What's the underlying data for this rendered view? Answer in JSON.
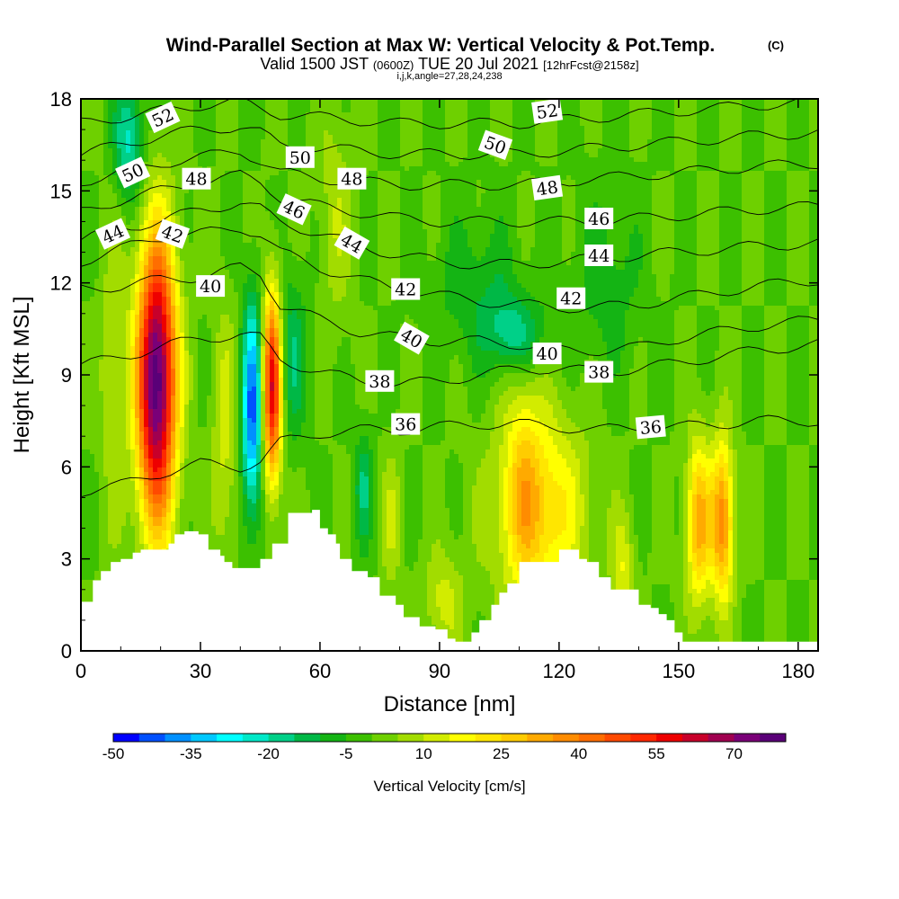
{
  "header": {
    "title": "Wind-Parallel Section at Max W: Vertical Velocity & Pot.Temp.",
    "copyright": "(C)",
    "valid_main_a": "Valid 1500 JST",
    "valid_small_a": "(0600Z)",
    "valid_main_b": "TUE 20 Jul 2021",
    "valid_small_b": "[12hrFcst@2158z]",
    "indices": "i,j,k,angle=27,28,24,238"
  },
  "chart_data": {
    "type": "heatmap",
    "xlabel": "Distance [nm]",
    "ylabel": "Height [Kft MSL]",
    "xlim": [
      0,
      185
    ],
    "ylim": [
      0,
      18
    ],
    "xticks": [
      0,
      30,
      60,
      90,
      120,
      150,
      180
    ],
    "yticks": [
      0,
      3,
      6,
      9,
      12,
      15,
      18
    ],
    "grid": false,
    "field": "Vertical Velocity [cm/s]",
    "background_level": 0,
    "updraft_cores": [
      {
        "x": 19,
        "y": 8.8,
        "peak": 80,
        "sx": 3.5,
        "sy": 3.3
      },
      {
        "x": 48,
        "y": 8.6,
        "peak": 60,
        "sx": 1.7,
        "sy": 2.2
      },
      {
        "x": 155,
        "y": 4.2,
        "peak": 32,
        "sx": 2.2,
        "sy": 1.9
      },
      {
        "x": 161,
        "y": 4.2,
        "peak": 38,
        "sx": 2.0,
        "sy": 1.9
      },
      {
        "x": 115,
        "y": 4.6,
        "peak": 26,
        "sx": 8.0,
        "sy": 2.2
      },
      {
        "x": 111,
        "y": 6.0,
        "peak": 12,
        "sx": 3.0,
        "sy": 2.8
      },
      {
        "x": 8,
        "y": 9.0,
        "peak": 8,
        "sx": 2.5,
        "sy": 4.0
      },
      {
        "x": 36,
        "y": 7.0,
        "peak": 12,
        "sx": 2.2,
        "sy": 3.0
      },
      {
        "x": 91,
        "y": 1.6,
        "peak": 12,
        "sx": 3.5,
        "sy": 1.2
      },
      {
        "x": 78,
        "y": 4.2,
        "peak": 10,
        "sx": 1.8,
        "sy": 1.6
      },
      {
        "x": 136,
        "y": 2.6,
        "peak": 14,
        "sx": 2.0,
        "sy": 1.3
      },
      {
        "x": 64,
        "y": 14.2,
        "peak": 9,
        "sx": 3.0,
        "sy": 2.5
      }
    ],
    "downdraft_cores": [
      {
        "x": 43,
        "y": 7.9,
        "peak": -42,
        "sx": 1.8,
        "sy": 2.4
      },
      {
        "x": 12,
        "y": 16.6,
        "peak": -22,
        "sx": 2.8,
        "sy": 1.4
      },
      {
        "x": 109,
        "y": 10.3,
        "peak": -18,
        "sx": 5.0,
        "sy": 0.9
      },
      {
        "x": 53,
        "y": 9.6,
        "peak": -15,
        "sx": 2.5,
        "sy": 1.8
      },
      {
        "x": 71,
        "y": 5.3,
        "peak": -15,
        "sx": 1.6,
        "sy": 1.3
      },
      {
        "x": 100,
        "y": 11.8,
        "peak": -9,
        "sx": 8.0,
        "sy": 1.6
      },
      {
        "x": 132,
        "y": 12.0,
        "peak": -8,
        "sx": 6.0,
        "sy": 2.0
      }
    ],
    "terrain_height": {
      "x": [
        0,
        3,
        5,
        7.5,
        10,
        13,
        15,
        19,
        22,
        23.5,
        26,
        29.5,
        32,
        35,
        36,
        38,
        40,
        45,
        48,
        52,
        58,
        60,
        62,
        64,
        65,
        68,
        72,
        75,
        79,
        81,
        85,
        89,
        92,
        94,
        95,
        98,
        100,
        103,
        105,
        107,
        110,
        120,
        125,
        127,
        130,
        133,
        140,
        143,
        145,
        147,
        149,
        151,
        185
      ],
      "height": [
        1.6,
        2.3,
        2.6,
        2.9,
        3.0,
        3.2,
        3.3,
        3.3,
        3.5,
        3.8,
        3.9,
        3.8,
        3.3,
        3.1,
        2.9,
        2.7,
        2.7,
        3.0,
        3.5,
        4.5,
        4.6,
        4.0,
        3.8,
        3.5,
        3.0,
        2.6,
        2.4,
        1.8,
        1.5,
        1.1,
        0.8,
        0.7,
        0.4,
        0.3,
        0.3,
        0.6,
        1.0,
        1.5,
        1.9,
        2.2,
        2.9,
        3.3,
        3.0,
        2.9,
        2.4,
        2.0,
        1.5,
        1.4,
        1.2,
        1.0,
        0.6,
        0.3,
        0.3
      ]
    },
    "theta_levels": [
      36,
      38,
      40,
      42,
      44,
      46,
      48,
      50,
      52
    ],
    "theta_heights": {
      "x": [
        0,
        10,
        20,
        30,
        40,
        45,
        50,
        60,
        70,
        80,
        90,
        100,
        110,
        120,
        130,
        140,
        150,
        160,
        170,
        185
      ],
      "rows": [
        {
          "level": 36,
          "h": [
            5.2,
            5.4,
            5.8,
            6.1,
            6.0,
            6.2,
            6.8,
            7.1,
            7.2,
            7.2,
            7.3,
            7.4,
            7.4,
            7.3,
            7.2,
            7.3,
            7.3,
            7.4,
            7.5,
            7.5
          ]
        },
        {
          "level": 38,
          "h": [
            9.3,
            9.6,
            9.9,
            10.2,
            10.3,
            10.2,
            9.5,
            9.1,
            8.8,
            8.7,
            8.8,
            9.0,
            9.2,
            9.2,
            9.1,
            9.2,
            9.4,
            9.6,
            9.8,
            10.0
          ]
        },
        {
          "level": 40,
          "h": [
            11.8,
            11.9,
            12.1,
            12.2,
            12.5,
            12.3,
            11.3,
            10.8,
            10.4,
            10.2,
            10.1,
            10.1,
            10.0,
            9.8,
            9.8,
            9.9,
            10.2,
            10.4,
            10.6,
            10.8
          ]
        },
        {
          "level": 42,
          "h": [
            12.7,
            13.1,
            13.5,
            13.6,
            13.8,
            13.6,
            13.0,
            12.5,
            12.1,
            11.8,
            11.6,
            11.4,
            11.3,
            11.2,
            11.2,
            11.3,
            11.5,
            11.7,
            11.9,
            12.1
          ]
        },
        {
          "level": 44,
          "h": [
            13.4,
            13.8,
            14.0,
            14.4,
            14.6,
            14.4,
            14.0,
            13.6,
            13.2,
            12.9,
            12.7,
            12.6,
            12.6,
            12.7,
            12.8,
            12.9,
            13.0,
            13.1,
            13.2,
            13.3
          ]
        },
        {
          "level": 46,
          "h": [
            14.3,
            14.7,
            15.0,
            15.3,
            15.5,
            15.3,
            14.8,
            14.5,
            14.3,
            14.1,
            14.0,
            14.0,
            14.0,
            14.0,
            14.0,
            14.1,
            14.2,
            14.3,
            14.4,
            14.5
          ]
        },
        {
          "level": 48,
          "h": [
            15.3,
            15.6,
            15.9,
            16.1,
            16.3,
            16.0,
            15.6,
            15.4,
            15.3,
            15.2,
            15.2,
            15.2,
            15.2,
            15.3,
            15.4,
            15.5,
            15.6,
            15.7,
            15.8,
            15.9
          ]
        },
        {
          "level": 50,
          "h": [
            16.2,
            16.5,
            16.8,
            17.0,
            17.1,
            16.9,
            16.5,
            16.4,
            16.3,
            16.2,
            16.2,
            16.2,
            16.2,
            16.3,
            16.4,
            16.5,
            16.6,
            16.7,
            16.8,
            16.9
          ]
        },
        {
          "level": 52,
          "h": [
            17.2,
            17.4,
            17.6,
            17.8,
            17.9,
            17.7,
            17.5,
            17.4,
            17.3,
            17.2,
            17.2,
            17.2,
            17.2,
            17.3,
            17.4,
            17.5,
            17.6,
            17.7,
            17.8,
            17.9
          ]
        }
      ]
    },
    "contour_labels": [
      {
        "text": "52",
        "x": 20.5,
        "y": 17.4,
        "angle": -25
      },
      {
        "text": "52",
        "x": 117,
        "y": 17.6,
        "angle": -8
      },
      {
        "text": "50",
        "x": 13,
        "y": 15.6,
        "angle": -25
      },
      {
        "text": "50",
        "x": 55,
        "y": 16.1,
        "angle": 0
      },
      {
        "text": "50",
        "x": 104,
        "y": 16.5,
        "angle": 20
      },
      {
        "text": "48",
        "x": 29,
        "y": 15.4,
        "angle": 0
      },
      {
        "text": "48",
        "x": 68,
        "y": 15.4,
        "angle": 0
      },
      {
        "text": "48",
        "x": 117,
        "y": 15.1,
        "angle": -8
      },
      {
        "text": "46",
        "x": 53.5,
        "y": 14.4,
        "angle": 25
      },
      {
        "text": "46",
        "x": 130,
        "y": 14.1,
        "angle": 0
      },
      {
        "text": "44",
        "x": 8,
        "y": 13.6,
        "angle": -25
      },
      {
        "text": "44",
        "x": 68,
        "y": 13.3,
        "angle": 30
      },
      {
        "text": "44",
        "x": 130,
        "y": 12.9,
        "angle": 0
      },
      {
        "text": "42",
        "x": 23,
        "y": 13.6,
        "angle": 20
      },
      {
        "text": "42",
        "x": 81.5,
        "y": 11.8,
        "angle": 0
      },
      {
        "text": "42",
        "x": 123,
        "y": 11.5,
        "angle": 0
      },
      {
        "text": "40",
        "x": 32.5,
        "y": 11.9,
        "angle": 0
      },
      {
        "text": "40",
        "x": 83,
        "y": 10.2,
        "angle": 30
      },
      {
        "text": "40",
        "x": 117,
        "y": 9.7,
        "angle": 0
      },
      {
        "text": "38",
        "x": 75,
        "y": 8.8,
        "angle": 0
      },
      {
        "text": "38",
        "x": 130,
        "y": 9.1,
        "angle": 0
      },
      {
        "text": "36",
        "x": 81.5,
        "y": 7.4,
        "angle": 0
      },
      {
        "text": "36",
        "x": 143,
        "y": 7.3,
        "angle": -5
      }
    ],
    "colorbar": {
      "label": "Vertical Velocity [cm/s]",
      "min": -50,
      "step": 5,
      "tick_labels": [
        "-50",
        "-35",
        "-20",
        "-5",
        "10",
        "25",
        "40",
        "55",
        "70"
      ],
      "colors": [
        "#0000ff",
        "#0050ff",
        "#0090ff",
        "#00c8ff",
        "#00ffff",
        "#00e8c8",
        "#00d088",
        "#00b846",
        "#14b414",
        "#3cc000",
        "#6ed000",
        "#a2dc00",
        "#d2ec00",
        "#ffff00",
        "#ffe600",
        "#ffcc00",
        "#ffaa00",
        "#ff8c00",
        "#ff6e00",
        "#ff4a00",
        "#ff2800",
        "#ee0000",
        "#c8002a",
        "#a00050",
        "#7a0078",
        "#5a0078"
      ]
    }
  }
}
